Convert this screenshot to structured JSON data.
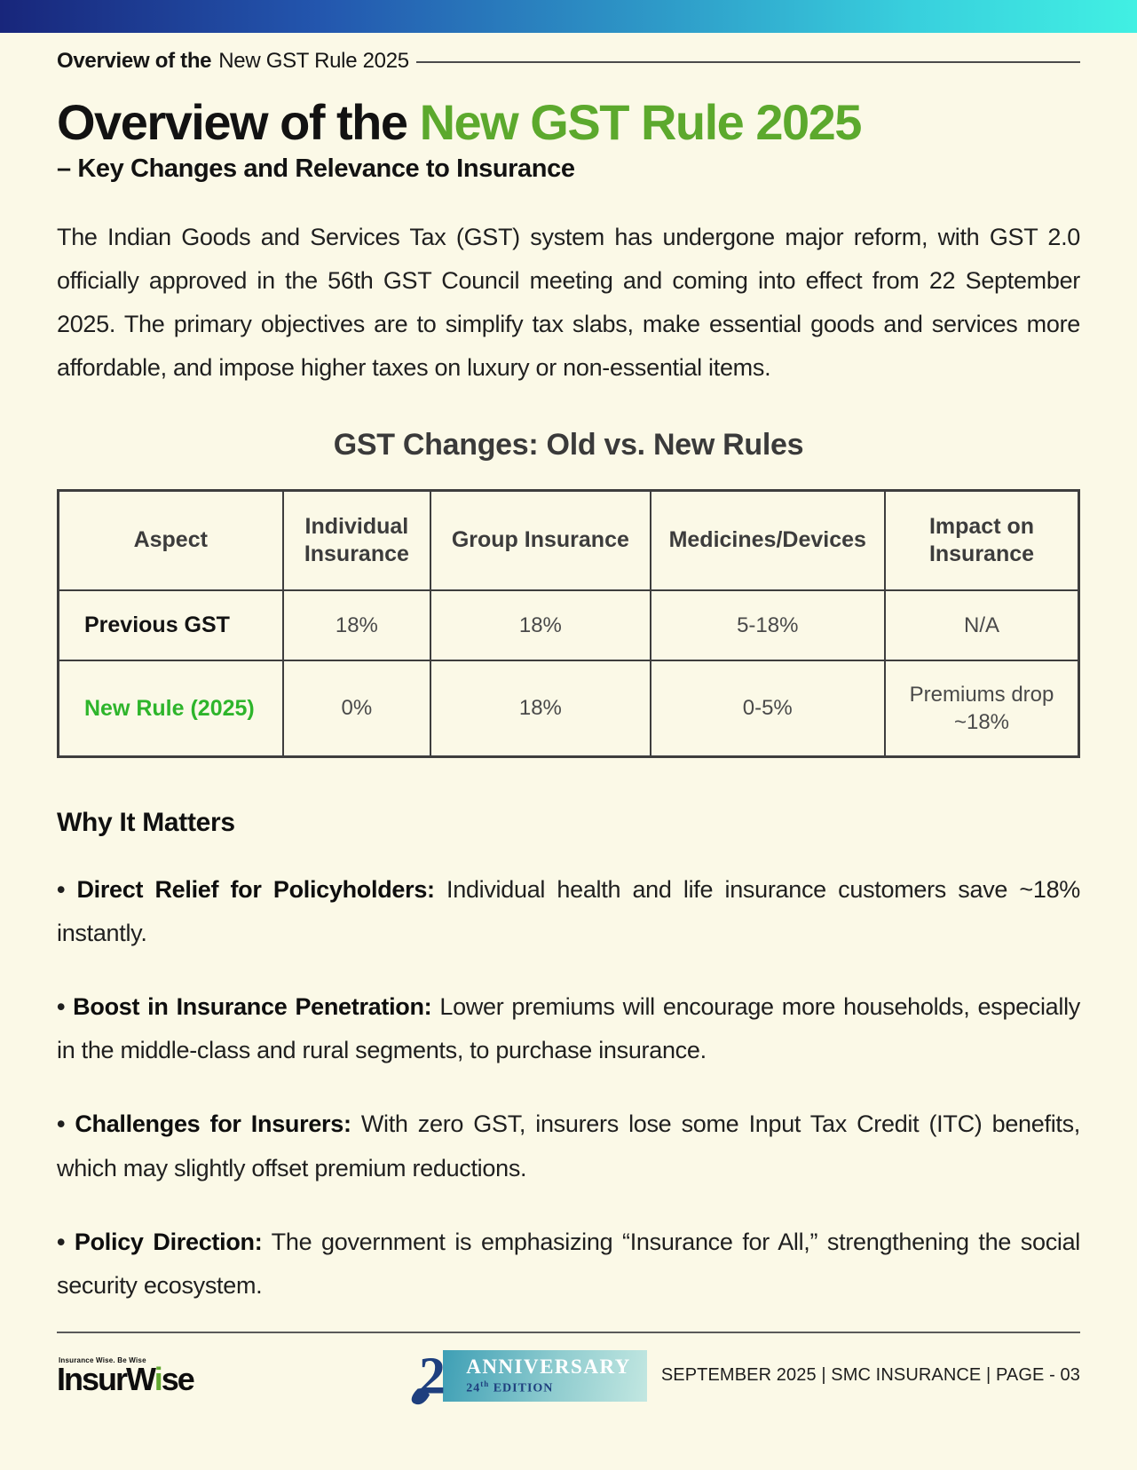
{
  "page": {
    "eyebrow": {
      "bold": "Overview of the",
      "regular": "New GST Rule 2025"
    },
    "title": {
      "black": "Overview of the ",
      "green": "New GST Rule 2025"
    },
    "subtitle": "– Key Changes and Relevance to Insurance",
    "intro": "The Indian Goods and Services Tax (GST) system has undergone major reform, with GST 2.0 officially approved in the 56th GST Council meeting and coming into effect from 22 September 2025. The primary objectives are to simplify tax slabs, make essential goods and services more affordable, and impose higher taxes on luxury or non-essential items."
  },
  "comparison": {
    "title": "GST Changes: Old vs. New Rules",
    "headers": [
      "Aspect",
      "Individual Insurance",
      "Group Insurance",
      "Medicines/Devices",
      "Impact on Insurance"
    ],
    "rows": [
      {
        "label": "Previous GST",
        "highlight": false,
        "values": [
          "18%",
          "18%",
          "5-18%",
          "N/A"
        ]
      },
      {
        "label": "New Rule (2025)",
        "highlight": true,
        "values": [
          "0%",
          "18%",
          "0-5%",
          "Premiums drop ~18%"
        ]
      }
    ]
  },
  "why_it_matters": {
    "heading": "Why It Matters",
    "bullet_glyph": "•",
    "bullets": [
      {
        "lead": "Direct Relief for Policyholders:",
        "text": "Individual health and life insurance customers save ~18% instantly."
      },
      {
        "lead": "Boost in Insurance Penetration:",
        "text": "Lower premiums will encourage more households, especially in the middle-class and rural segments, to purchase insurance."
      },
      {
        "lead": "Challenges for Insurers:",
        "text": "With zero GST, insurers lose some Input Tax Credit (ITC) benefits, which may slightly offset premium reductions."
      },
      {
        "lead": "Policy Direction:",
        "text": "The government is emphasizing “Insurance for All,” strengthening the social security ecosystem."
      }
    ]
  },
  "footer": {
    "logo": {
      "tagline": "Insurance Wise. Be Wise",
      "part1": "InsurW",
      "green_letter": "i",
      "part2": "se"
    },
    "badge": {
      "numeral": "2",
      "line1": "ANNIVERSARY",
      "edition_number": "24",
      "edition_suffix": "th",
      "edition_word": " EDITION"
    },
    "meta": "SEPTEMBER 2025 |  SMC INSURANCE | PAGE - 03"
  },
  "colors": {
    "page_bg": "#FBF9E7",
    "topbar_gradient_start": "#18267B",
    "topbar_gradient_end": "#41F0E3",
    "title_green": "#5CA92D",
    "new_rule_green": "#2EB52B",
    "logo_green": "#61A92F",
    "badge_navy": "#1E3F7E",
    "ribbon_teal": "#3E9FB5",
    "table_border": "#3E3E3E"
  }
}
